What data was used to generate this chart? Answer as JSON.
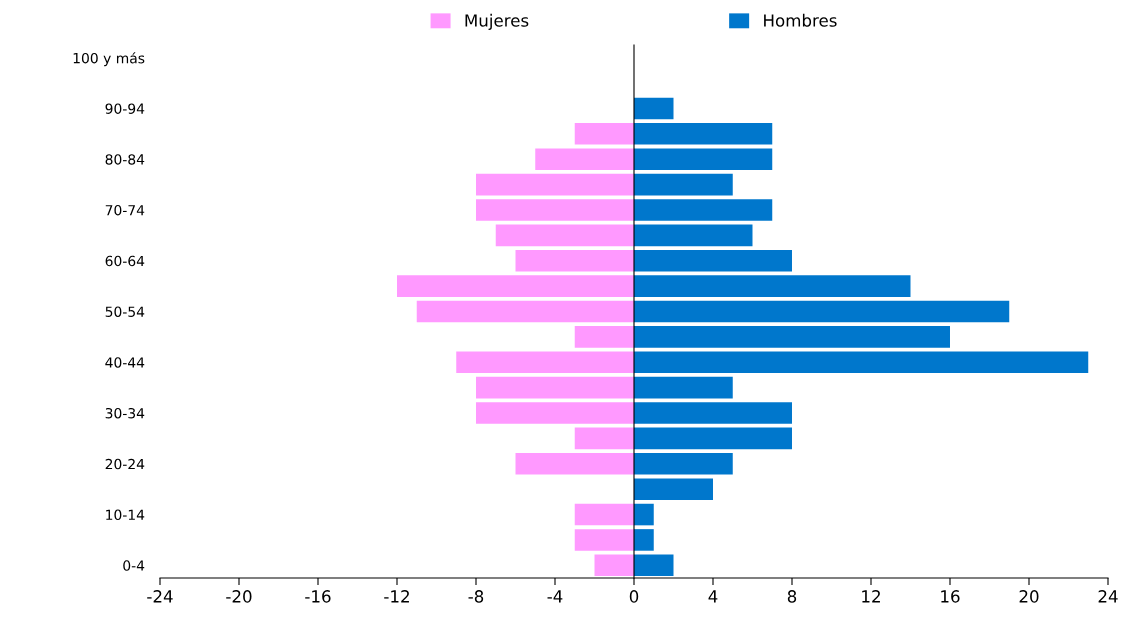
{
  "chart_data": {
    "type": "bar",
    "orientation": "horizontal",
    "categories": [
      "100 y más",
      null,
      "90-94",
      null,
      "80-84",
      null,
      "70-74",
      null,
      "60-64",
      null,
      "50-54",
      null,
      "40-44",
      null,
      "30-34",
      null,
      "20-24",
      null,
      "10-14",
      null,
      "0-4"
    ],
    "series": [
      {
        "name": "Mujeres",
        "color": "#ff99ff",
        "values": [
          0,
          0,
          0,
          -3,
          -5,
          -8,
          -8,
          -7,
          -6,
          -12,
          -11,
          -3,
          -9,
          -8,
          -8,
          -3,
          -6,
          0,
          -3,
          -3,
          -2
        ]
      },
      {
        "name": "Hombres",
        "color": "#0077cc",
        "values": [
          0,
          0,
          2,
          7,
          7,
          5,
          7,
          6,
          8,
          14,
          19,
          16,
          23,
          5,
          8,
          8,
          5,
          4,
          1,
          1,
          2
        ]
      }
    ],
    "xlim": [
      -24,
      24
    ],
    "xticks": [
      -24,
      -20,
      -16,
      -12,
      -8,
      -4,
      0,
      4,
      8,
      12,
      16,
      20,
      24
    ],
    "stacked": true,
    "legend": "top"
  }
}
